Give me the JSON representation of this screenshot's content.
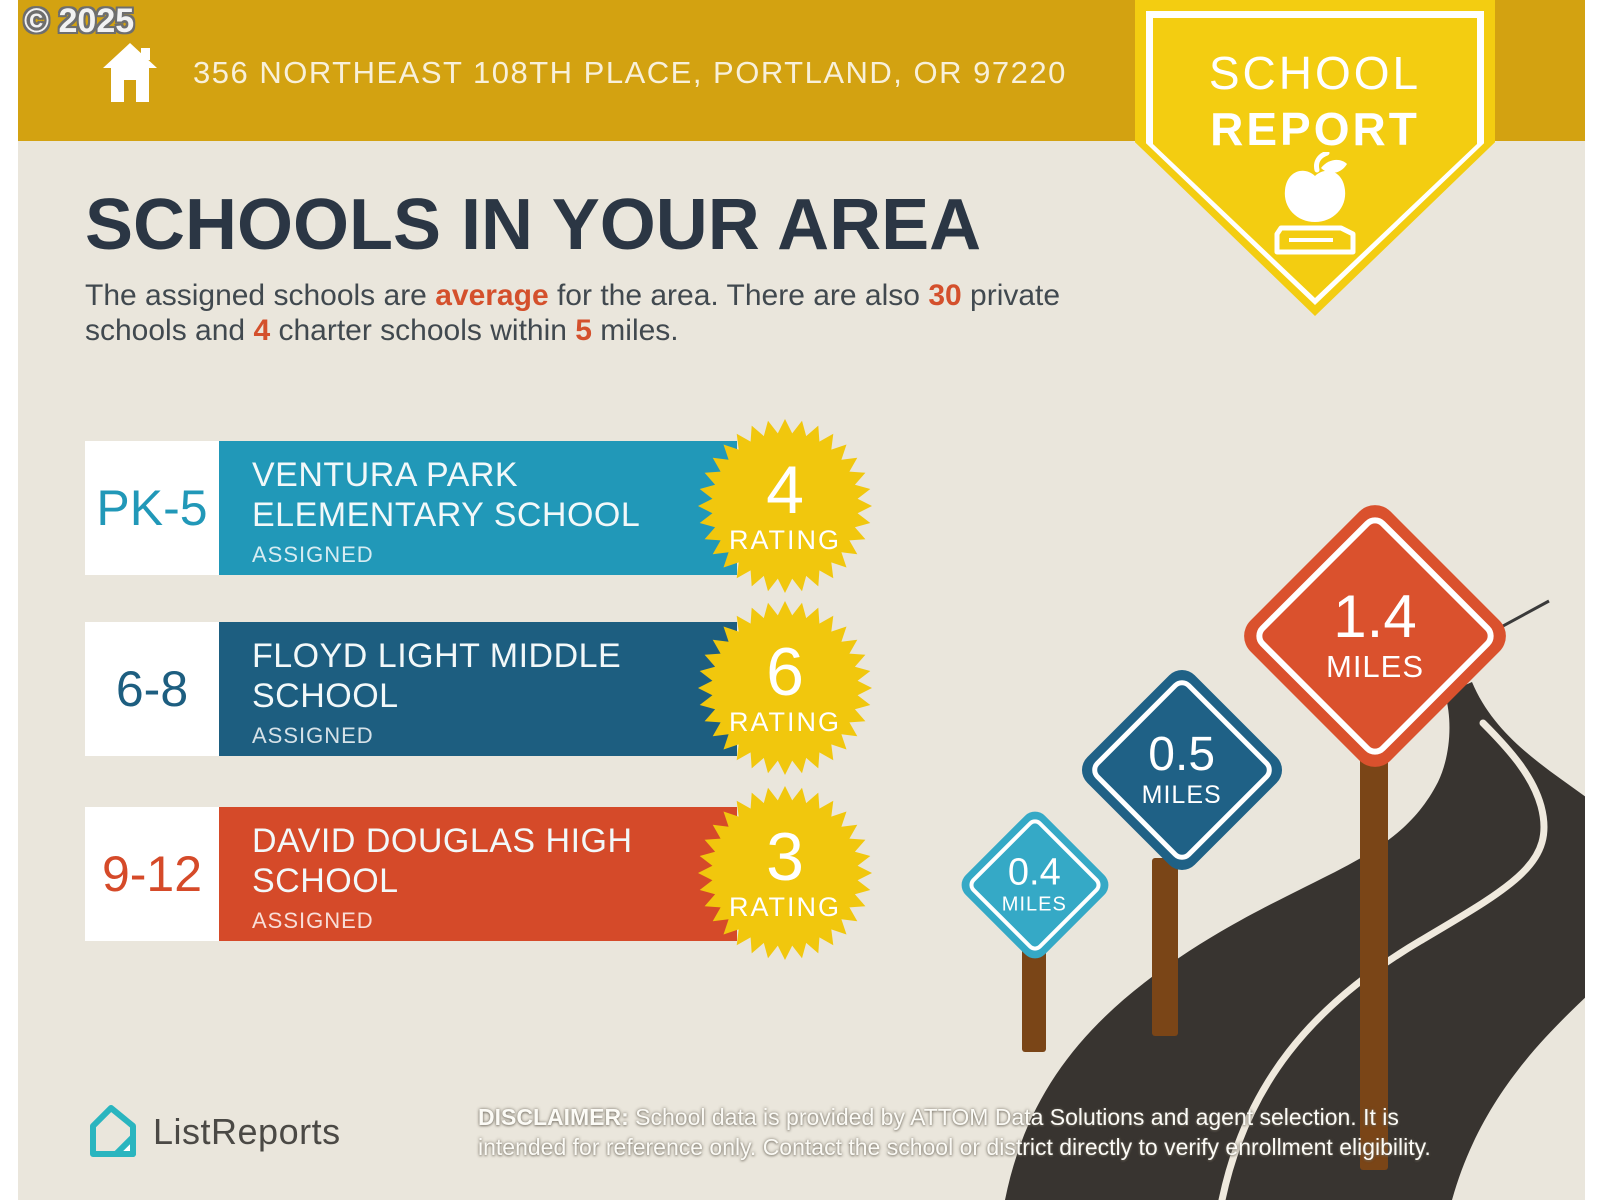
{
  "watermark": "© 2025",
  "banner": {
    "address": "356 NORTHEAST 108TH PLACE, PORTLAND, OR 97220"
  },
  "badge": {
    "line1": "SCHOOL",
    "line2": "REPORT",
    "icon": "apple-on-book-icon"
  },
  "heading": "SCHOOLS IN YOUR AREA",
  "intro_segments": [
    {
      "text": "The assigned schools are ",
      "bold": false
    },
    {
      "text": "average",
      "bold": true
    },
    {
      "text": " for the area. There are also ",
      "bold": false
    },
    {
      "text": "30",
      "bold": true
    },
    {
      "text": " private schools and ",
      "bold": false
    },
    {
      "text": "4",
      "bold": true
    },
    {
      "text": " charter schools within ",
      "bold": false
    },
    {
      "text": "5",
      "bold": true
    },
    {
      "text": " miles.",
      "bold": false
    }
  ],
  "schools": [
    {
      "grades": "PK-5",
      "name_line1": "VENTURA PARK",
      "name_line2": "ELEMENTARY SCHOOL",
      "status": "ASSIGNED",
      "rating": "4",
      "rating_label": "RATING",
      "color": "#2198b8"
    },
    {
      "grades": "6-8",
      "name_line1": "FLOYD LIGHT MIDDLE",
      "name_line2": "SCHOOL",
      "status": "ASSIGNED",
      "rating": "6",
      "rating_label": "RATING",
      "color": "#1d5e80"
    },
    {
      "grades": "9-12",
      "name_line1": "DAVID DOUGLAS HIGH",
      "name_line2": "SCHOOL",
      "status": "ASSIGNED",
      "rating": "3",
      "rating_label": "RATING",
      "color": "#d54a29"
    }
  ],
  "distance_signs": [
    {
      "value": "0.4",
      "unit": "MILES",
      "color": "#35a9c6"
    },
    {
      "value": "0.5",
      "unit": "MILES",
      "color": "#1f6186"
    },
    {
      "value": "1.4",
      "unit": "MILES",
      "color": "#da512d"
    }
  ],
  "footer": {
    "brand": "ListReports",
    "disclaimer_label": "DISCLAIMER:",
    "disclaimer_text": " School data is provided by ATTOM Data Solutions and agent selection. It is intended for reference only. Contact the school or district directly to verify enrollment eligibility."
  },
  "colors": {
    "banner_gold": "#d3a211",
    "badge_yellow": "#f3cd11",
    "background_beige": "#eae6dc",
    "heading_navy": "#2b3644",
    "accent_orange": "#d4502c",
    "star_yellow": "#f1c70d",
    "road_dark": "#383430",
    "road_line": "#efe9dd",
    "post_brown": "#7a4517",
    "brand_teal": "#2ab5bf"
  }
}
